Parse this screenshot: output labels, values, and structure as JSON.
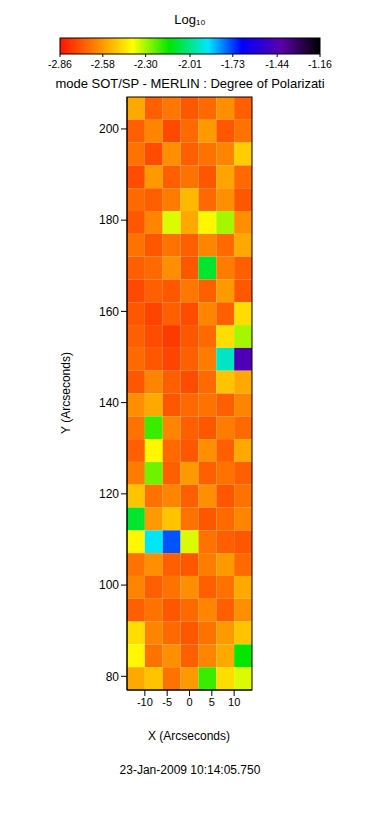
{
  "chart_data": {
    "type": "heatmap",
    "title": "mode SOT/SP - MERLIN : Degree of Polarizati",
    "x_label": "X (Arcseconds)",
    "y_label": "Y (Arcseconds)",
    "annotations": [
      "23-Jan-2009 10:14:05.750"
    ],
    "xlim": [
      -14,
      14
    ],
    "xticks": [
      -10,
      -5,
      0,
      5,
      10
    ],
    "ylim": [
      77,
      207
    ],
    "yticks": [
      80,
      100,
      120,
      140,
      160,
      180,
      200
    ],
    "colorbar": {
      "label": "Log₁₀",
      "range": [
        -2.86,
        -1.16
      ],
      "ticks": [
        -2.86,
        -2.58,
        {
          "value": -2.3,
          "label": "-2.30"
        },
        -2.01,
        -1.73,
        -1.44,
        -1.16
      ]
    },
    "cells": {
      "x": [
        -12,
        -8,
        -4,
        0,
        4,
        8,
        12
      ],
      "y": [
        204.5,
        199.5,
        194.5,
        189.5,
        184.5,
        179.5,
        174.5,
        169.5,
        164.5,
        159.5,
        154.5,
        149.5,
        144.5,
        139.5,
        134.5,
        129.5,
        124.5,
        119.5,
        114.5,
        109.5,
        104.5,
        99.5,
        94.5,
        89.5,
        84.5,
        79.5
      ],
      "values": [
        [
          -2.55,
          -2.7,
          -2.65,
          -2.72,
          -2.68,
          -2.6,
          -2.7
        ],
        [
          -2.7,
          -2.62,
          -2.75,
          -2.68,
          -2.58,
          -2.72,
          -2.66
        ],
        [
          -2.66,
          -2.74,
          -2.6,
          -2.7,
          -2.66,
          -2.62,
          -2.48
        ],
        [
          -2.74,
          -2.58,
          -2.7,
          -2.66,
          -2.72,
          -2.56,
          -2.68
        ],
        [
          -2.68,
          -2.7,
          -2.64,
          -2.52,
          -2.68,
          -2.6,
          -2.72
        ],
        [
          -2.72,
          -2.62,
          -2.35,
          -2.55,
          -2.4,
          -2.3,
          -2.6
        ],
        [
          -2.66,
          -2.72,
          -2.66,
          -2.7,
          -2.62,
          -2.68,
          -2.55
        ],
        [
          -2.7,
          -2.68,
          -2.6,
          -2.72,
          -2.1,
          -2.64,
          -2.7
        ],
        [
          -2.75,
          -2.7,
          -2.72,
          -2.65,
          -2.7,
          -2.58,
          -2.72
        ],
        [
          -2.72,
          -2.76,
          -2.7,
          -2.74,
          -2.62,
          -2.7,
          -2.45
        ],
        [
          -2.7,
          -2.74,
          -2.78,
          -2.72,
          -2.68,
          -2.45,
          -2.3
        ],
        [
          -2.68,
          -2.72,
          -2.76,
          -2.7,
          -2.64,
          -1.95,
          -1.45
        ],
        [
          -2.72,
          -2.62,
          -2.7,
          -2.74,
          -2.68,
          -2.5,
          -2.55
        ],
        [
          -2.6,
          -2.55,
          -2.72,
          -2.68,
          -2.66,
          -2.7,
          -2.62
        ],
        [
          -2.66,
          -2.2,
          -2.62,
          -2.7,
          -2.72,
          -2.64,
          -2.68
        ],
        [
          -2.7,
          -2.4,
          -2.68,
          -2.72,
          -2.6,
          -2.7,
          -2.55
        ],
        [
          -2.64,
          -2.25,
          -2.7,
          -2.58,
          -2.7,
          -2.66,
          -2.7
        ],
        [
          -2.5,
          -2.66,
          -2.62,
          -2.7,
          -2.6,
          -2.72,
          -2.66
        ],
        [
          -2.1,
          -2.58,
          -2.5,
          -2.66,
          -2.72,
          -2.68,
          -2.62
        ],
        [
          -2.4,
          -1.9,
          -1.75,
          -2.35,
          -2.66,
          -2.7,
          -2.72
        ],
        [
          -2.66,
          -2.6,
          -2.7,
          -2.72,
          -2.64,
          -2.58,
          -2.68
        ],
        [
          -2.62,
          -2.7,
          -2.66,
          -2.6,
          -2.7,
          -2.66,
          -2.55
        ],
        [
          -2.7,
          -2.66,
          -2.72,
          -2.68,
          -2.62,
          -2.7,
          -2.6
        ],
        [
          -2.45,
          -2.62,
          -2.68,
          -2.72,
          -2.66,
          -2.58,
          -2.5
        ],
        [
          -2.4,
          -2.66,
          -2.6,
          -2.7,
          -2.62,
          -2.55,
          -2.15
        ],
        [
          -2.55,
          -2.5,
          -2.66,
          -2.58,
          -2.2,
          -2.45,
          -2.35
        ]
      ]
    }
  }
}
